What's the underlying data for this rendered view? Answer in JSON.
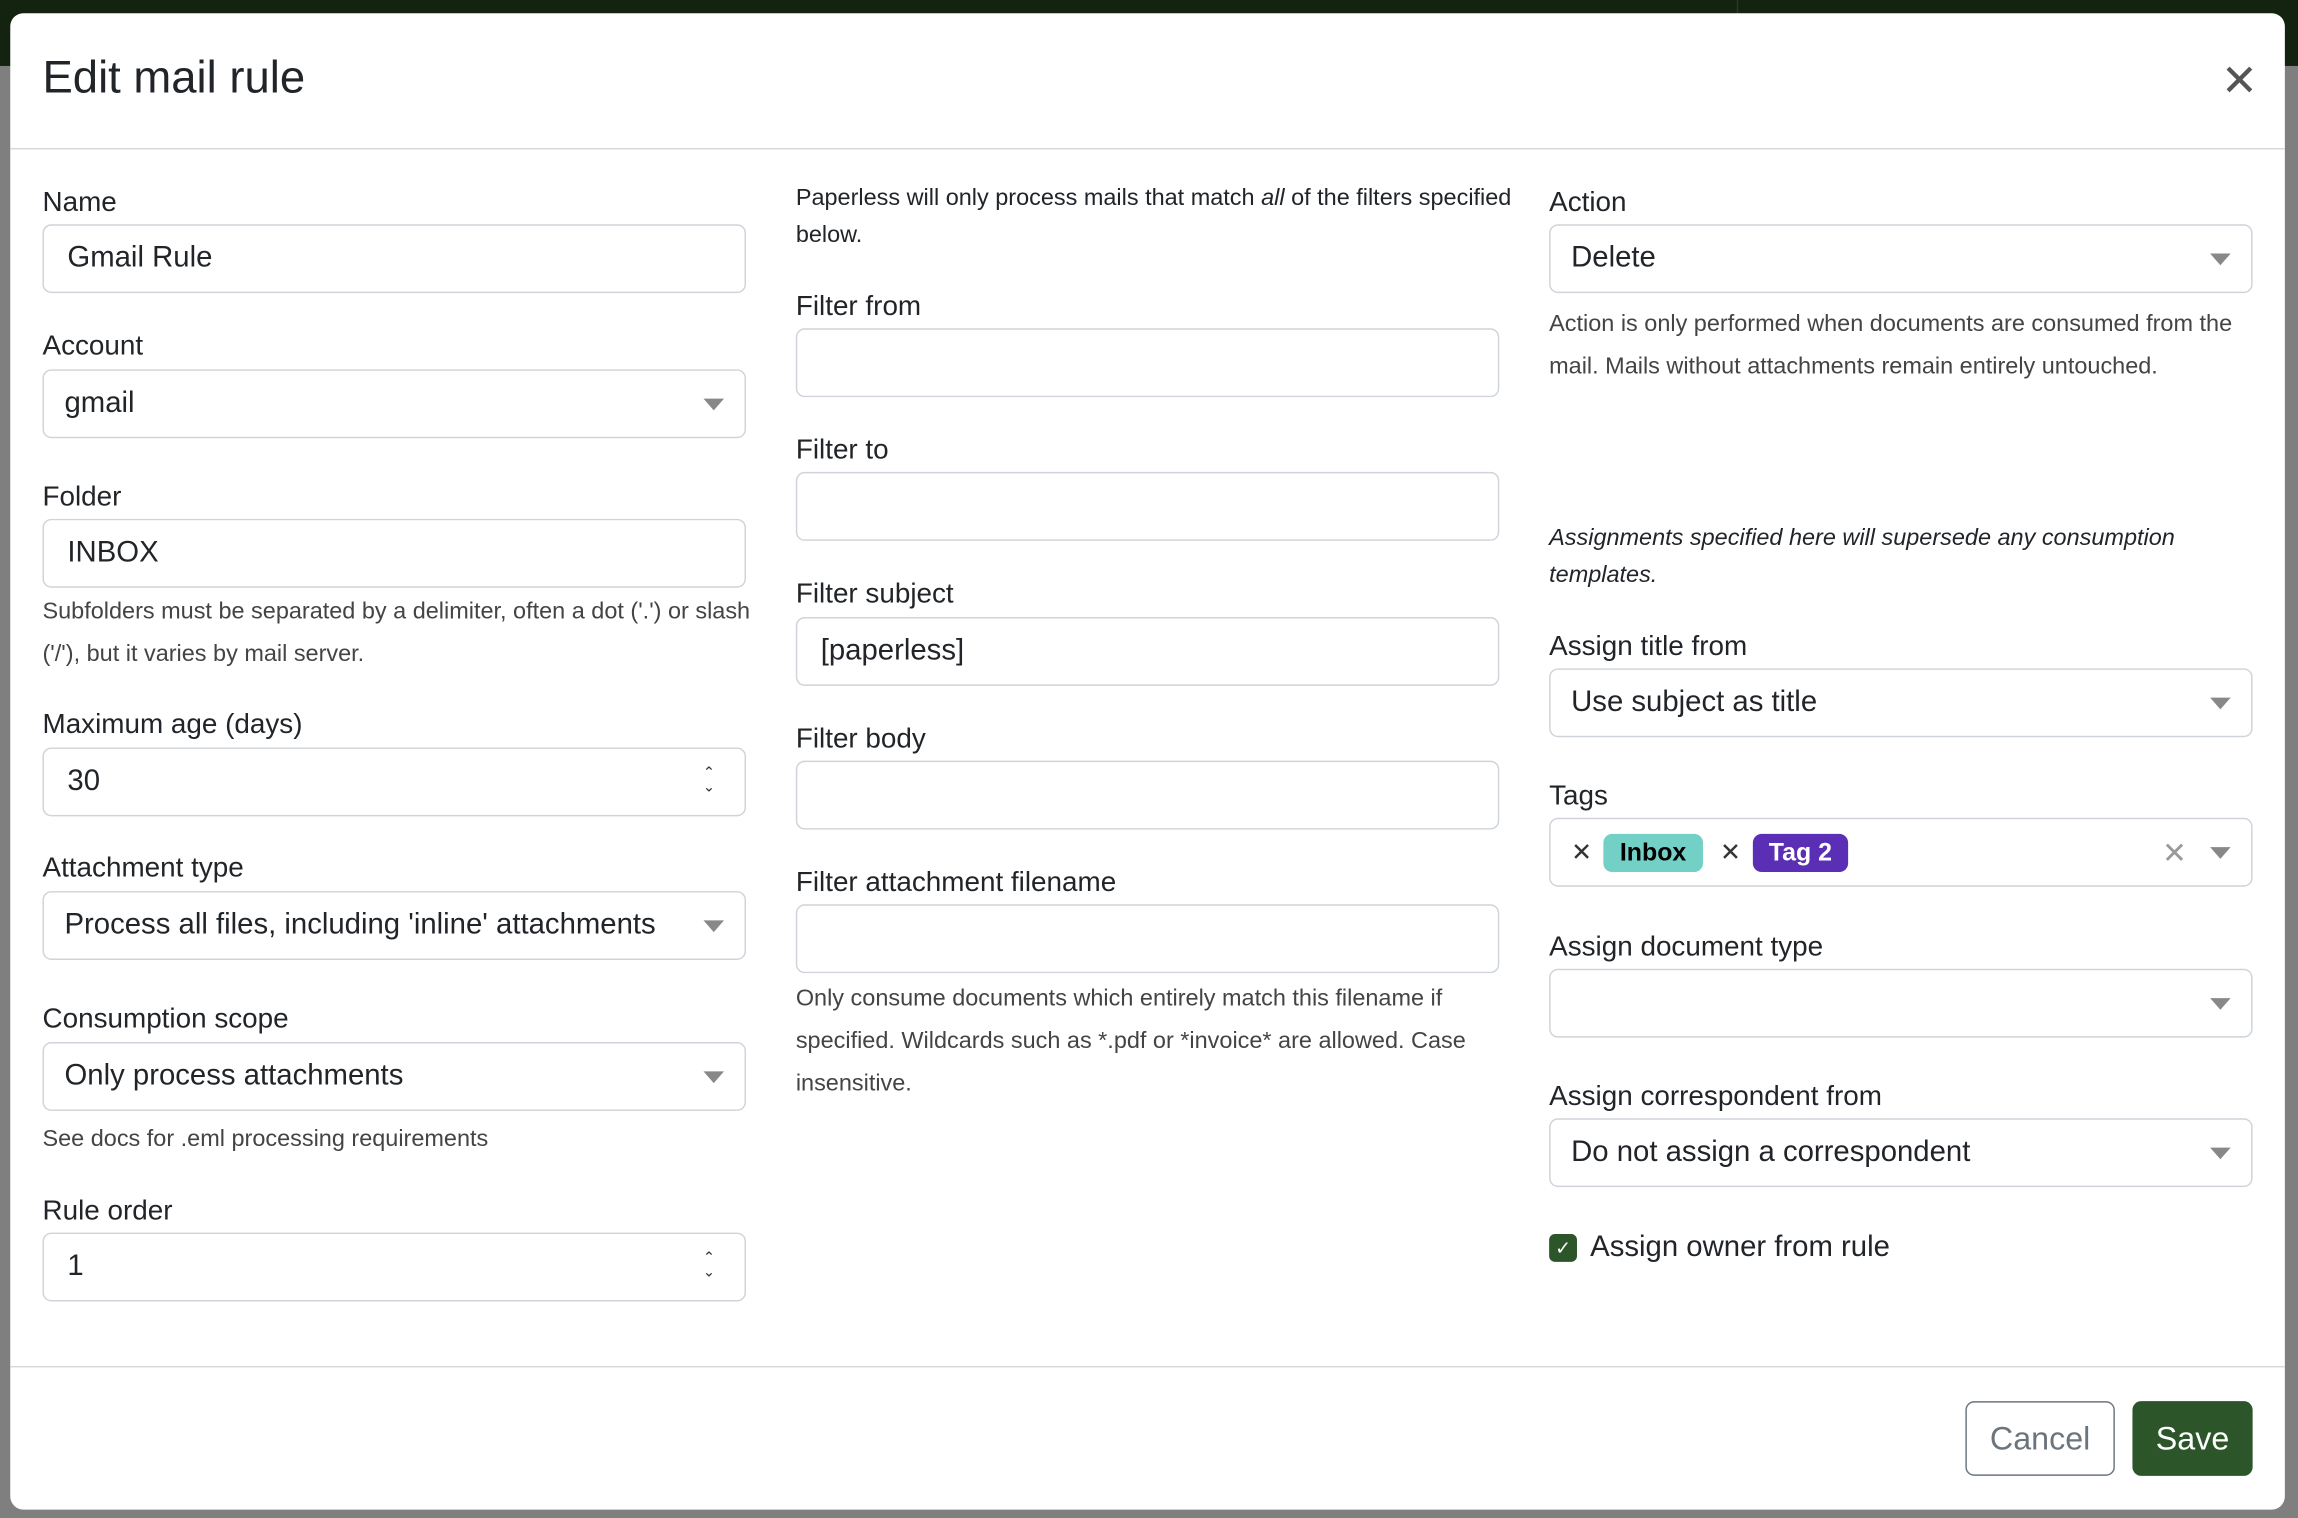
{
  "dialog": {
    "title": "Edit mail rule",
    "close_icon": "close-icon"
  },
  "left": {
    "name": {
      "label": "Name",
      "value": "Gmail Rule"
    },
    "account": {
      "label": "Account",
      "value": "gmail"
    },
    "folder": {
      "label": "Folder",
      "value": "INBOX",
      "help": "Subfolders must be separated by a delimiter, often a dot ('.') or slash ('/'), but it varies by mail server."
    },
    "max_age": {
      "label": "Maximum age (days)",
      "value": "30"
    },
    "attachment_type": {
      "label": "Attachment type",
      "value": "Process all files, including 'inline' attachments"
    },
    "consumption_scope": {
      "label": "Consumption scope",
      "value": "Only process attachments",
      "help": "See docs for .eml processing requirements"
    },
    "rule_order": {
      "label": "Rule order",
      "value": "1"
    }
  },
  "middle": {
    "intro_pre": "Paperless will only process mails that match ",
    "intro_em": "all",
    "intro_post": " of the filters specified below.",
    "filter_from": {
      "label": "Filter from",
      "value": ""
    },
    "filter_to": {
      "label": "Filter to",
      "value": ""
    },
    "filter_subject": {
      "label": "Filter subject",
      "value": "[paperless]"
    },
    "filter_body": {
      "label": "Filter body",
      "value": ""
    },
    "filter_attachment": {
      "label": "Filter attachment filename",
      "value": "",
      "help": "Only consume documents which entirely match this filename if specified. Wildcards such as *.pdf or *invoice* are allowed. Case insensitive."
    }
  },
  "right": {
    "action": {
      "label": "Action",
      "value": "Delete",
      "help": "Action is only performed when documents are consumed from the mail. Mails without attachments remain entirely untouched."
    },
    "assign_note": "Assignments specified here will supersede any consumption templates.",
    "assign_title": {
      "label": "Assign title from",
      "value": "Use subject as title"
    },
    "tags": {
      "label": "Tags",
      "items": [
        {
          "label": "Inbox",
          "bg": "#73d0c6",
          "fg": "#000000"
        },
        {
          "label": "Tag 2",
          "bg": "#5b2fb5",
          "fg": "#ffffff"
        }
      ]
    },
    "doc_type": {
      "label": "Assign document type",
      "value": ""
    },
    "correspondent": {
      "label": "Assign correspondent from",
      "value": "Do not assign a correspondent"
    },
    "owner": {
      "label": "Assign owner from rule",
      "checked": true
    }
  },
  "footer": {
    "cancel": "Cancel",
    "save": "Save"
  },
  "colors": {
    "primary": "#2c5629",
    "backdrop": "#7f7f7f",
    "navbar": "#13230f"
  }
}
